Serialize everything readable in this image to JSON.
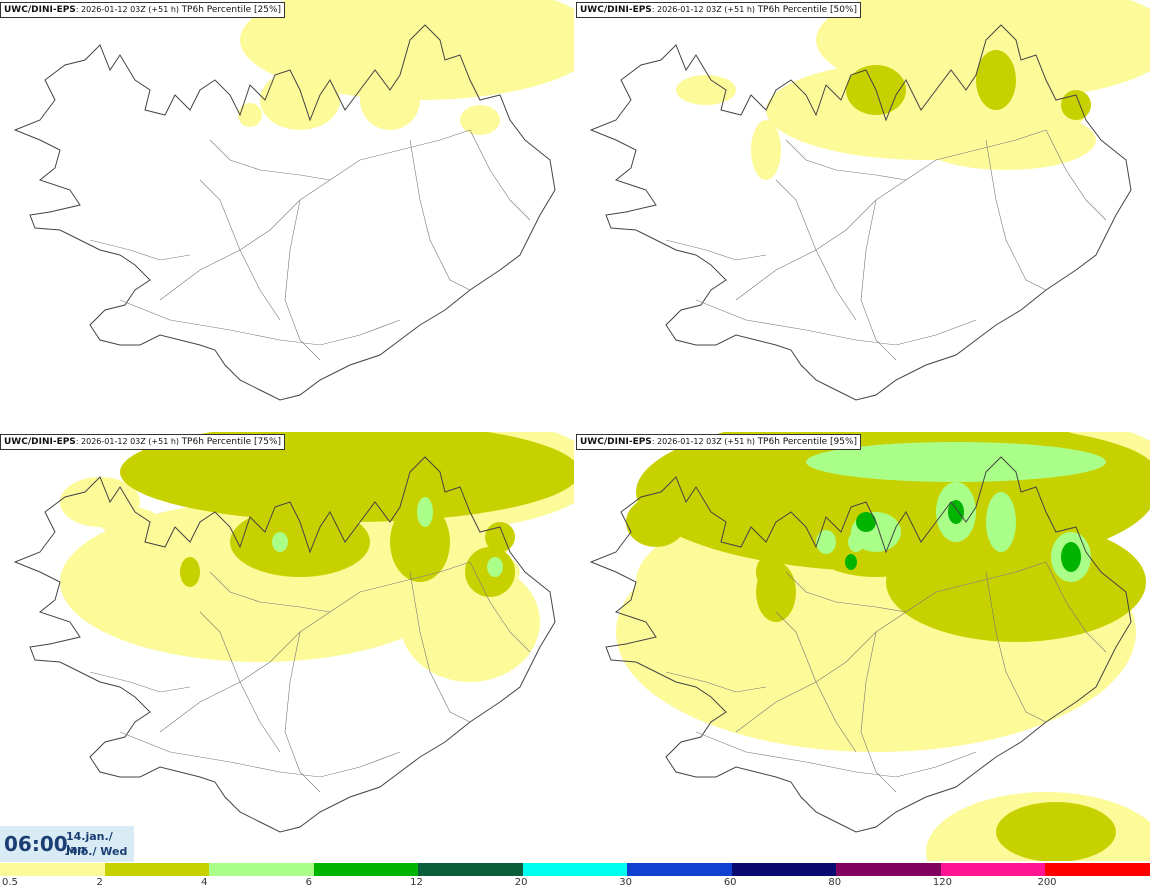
{
  "panels": [
    {
      "model": "UWC/DINI-EPS",
      "run": ": 2026-01-12 03Z (+51 h)",
      "title": "TP6h Percentile [25%]",
      "level": 1
    },
    {
      "model": "UWC/DINI-EPS",
      "run": ": 2026-01-12 03Z (+51 h)",
      "title": "TP6h Percentile [50%]",
      "level": 2
    },
    {
      "model": "UWC/DINI-EPS",
      "run": ": 2026-01-12 03Z (+51 h)",
      "title": "TP6h Percentile [75%]",
      "level": 3
    },
    {
      "model": "UWC/DINI-EPS",
      "run": ": 2026-01-12 03Z (+51 h)",
      "title": "TP6h Percentile [95%]",
      "level": 4
    }
  ],
  "valid_time": {
    "time": "06:00",
    "date_line1": "14.jan./ Jan",
    "date_line2": "Mið./ Wed"
  },
  "legend": {
    "colors": [
      "#fdfa9a",
      "#c8d100",
      "#aaff88",
      "#00b400",
      "#0b5e3c",
      "#00ffee",
      "#1040d0",
      "#0a0a70",
      "#800060",
      "#ff1493",
      "#ff0000"
    ],
    "ticks": [
      "0.5",
      "2",
      "4",
      "6",
      "12",
      "20",
      "30",
      "60",
      "80",
      "120",
      "200"
    ]
  },
  "colors": {
    "light_yellow": "#fdfa9a",
    "olive": "#c8d100",
    "light_green": "#aaff88",
    "green": "#00b400",
    "coast": "#444444"
  }
}
